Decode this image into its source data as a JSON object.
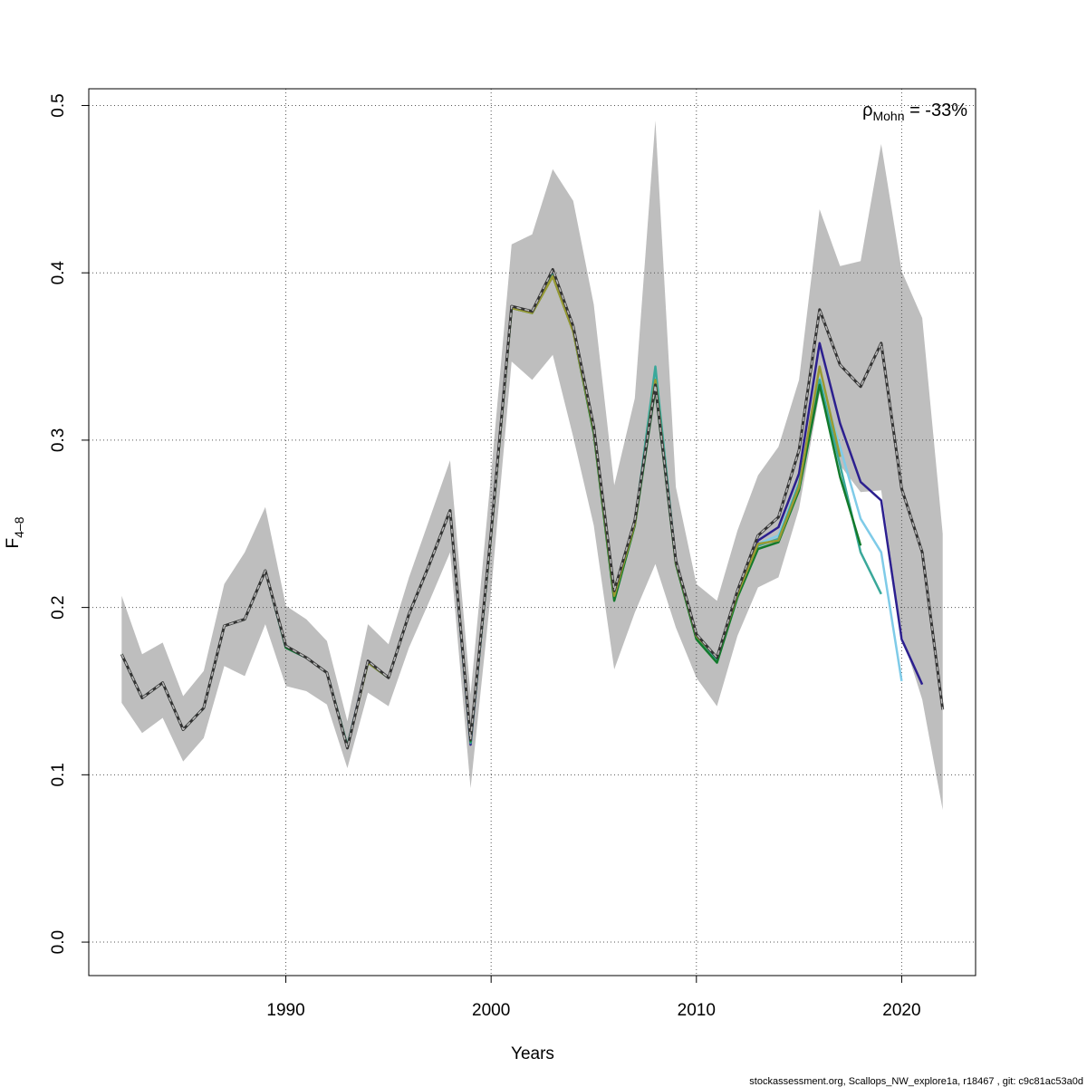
{
  "chart_data": {
    "type": "line",
    "xlabel": "Years",
    "ylabel": "F",
    "ylabel_subscript": "4–8",
    "xlim": [
      1980.4,
      2023.6
    ],
    "ylim": [
      -0.02,
      0.51
    ],
    "x_ticks": [
      1990,
      2000,
      2010,
      2020
    ],
    "x_tick_labels": [
      "1990",
      "2000",
      "2010",
      "2020"
    ],
    "y_ticks": [
      0.0,
      0.1,
      0.2,
      0.3,
      0.4,
      0.5
    ],
    "y_tick_labels": [
      "0.0",
      "0.1",
      "0.2",
      "0.3",
      "0.4",
      "0.5"
    ],
    "grid": true,
    "mohn_symbol": "ρ",
    "mohn_subscript": "Mohn",
    "mohn_value": " = -33%",
    "footer": "stockassessment.org, Scallops_NW_explore1a, r18467 , git: c9c81ac53a0d",
    "band": {
      "color": "#bebebe",
      "x": [
        1982,
        1983,
        1984,
        1985,
        1986,
        1987,
        1988,
        1989,
        1990,
        1991,
        1992,
        1993,
        1994,
        1995,
        1996,
        1997,
        1998,
        1999,
        2000,
        2001,
        2002,
        2003,
        2004,
        2005,
        2006,
        2007,
        2008,
        2009,
        2010,
        2011,
        2012,
        2013,
        2014,
        2015,
        2016,
        2017,
        2018,
        2019,
        2020,
        2021,
        2022
      ],
      "upper": [
        0.207,
        0.172,
        0.179,
        0.147,
        0.162,
        0.214,
        0.233,
        0.26,
        0.201,
        0.193,
        0.18,
        0.132,
        0.19,
        0.178,
        0.218,
        0.253,
        0.288,
        0.148,
        0.28,
        0.417,
        0.423,
        0.462,
        0.443,
        0.381,
        0.273,
        0.325,
        0.491,
        0.272,
        0.214,
        0.204,
        0.246,
        0.279,
        0.296,
        0.336,
        0.438,
        0.404,
        0.407,
        0.477,
        0.401,
        0.373,
        0.244
      ],
      "lower": [
        0.143,
        0.125,
        0.134,
        0.108,
        0.122,
        0.165,
        0.159,
        0.19,
        0.153,
        0.15,
        0.142,
        0.104,
        0.149,
        0.141,
        0.176,
        0.204,
        0.233,
        0.092,
        0.21,
        0.347,
        0.336,
        0.351,
        0.302,
        0.249,
        0.163,
        0.197,
        0.226,
        0.188,
        0.158,
        0.141,
        0.183,
        0.212,
        0.218,
        0.259,
        0.328,
        0.285,
        0.269,
        0.27,
        0.184,
        0.145,
        0.079
      ]
    },
    "series": [
      {
        "color": "#7fcbe8",
        "dashed": false,
        "width": 2.5,
        "x": [
          1982,
          1983,
          1984,
          1985,
          1986,
          1987,
          1988,
          1989,
          1990,
          1991,
          1992,
          1993,
          1994,
          1995,
          1996,
          1997,
          1998,
          1999,
          2000,
          2001,
          2002,
          2003,
          2004,
          2005,
          2006,
          2007,
          2008,
          2009,
          2010,
          2011,
          2012,
          2013,
          2014,
          2015,
          2016,
          2017,
          2018,
          2019,
          2020
        ],
        "y": [
          0.172,
          0.146,
          0.155,
          0.127,
          0.14,
          0.189,
          0.193,
          0.222,
          0.176,
          0.17,
          0.161,
          0.117,
          0.168,
          0.158,
          0.196,
          0.226,
          0.258,
          0.12,
          0.244,
          0.379,
          0.377,
          0.4,
          0.366,
          0.306,
          0.206,
          0.25,
          0.34,
          0.227,
          0.183,
          0.169,
          0.208,
          0.238,
          0.243,
          0.274,
          0.337,
          0.296,
          0.253,
          0.233,
          0.156
        ]
      },
      {
        "color": "#2c1f8f",
        "dashed": false,
        "width": 2.5,
        "x": [
          1982,
          1983,
          1984,
          1985,
          1986,
          1987,
          1988,
          1989,
          1990,
          1991,
          1992,
          1993,
          1994,
          1995,
          1996,
          1997,
          1998,
          1999,
          2000,
          2001,
          2002,
          2003,
          2004,
          2005,
          2006,
          2007,
          2008,
          2009,
          2010,
          2011,
          2012,
          2013,
          2014,
          2015,
          2016,
          2017,
          2018,
          2019,
          2020,
          2021
        ],
        "y": [
          0.172,
          0.146,
          0.155,
          0.127,
          0.14,
          0.189,
          0.193,
          0.222,
          0.176,
          0.17,
          0.161,
          0.117,
          0.168,
          0.158,
          0.196,
          0.226,
          0.258,
          0.118,
          0.245,
          0.38,
          0.376,
          0.401,
          0.367,
          0.307,
          0.208,
          0.251,
          0.336,
          0.228,
          0.183,
          0.169,
          0.209,
          0.24,
          0.248,
          0.28,
          0.358,
          0.31,
          0.275,
          0.264,
          0.181,
          0.154
        ]
      },
      {
        "color": "#3aa89a",
        "dashed": false,
        "width": 2.5,
        "x": [
          1982,
          1983,
          1984,
          1985,
          1986,
          1987,
          1988,
          1989,
          1990,
          1991,
          1992,
          1993,
          1994,
          1995,
          1996,
          1997,
          1998,
          1999,
          2000,
          2001,
          2002,
          2003,
          2004,
          2005,
          2006,
          2007,
          2008,
          2009,
          2010,
          2011,
          2012,
          2013,
          2014,
          2015,
          2016,
          2017,
          2018,
          2019
        ],
        "y": [
          0.172,
          0.146,
          0.155,
          0.127,
          0.14,
          0.189,
          0.193,
          0.222,
          0.176,
          0.17,
          0.161,
          0.117,
          0.167,
          0.158,
          0.196,
          0.226,
          0.258,
          0.119,
          0.244,
          0.379,
          0.376,
          0.399,
          0.366,
          0.305,
          0.205,
          0.25,
          0.344,
          0.227,
          0.182,
          0.168,
          0.207,
          0.237,
          0.241,
          0.274,
          0.336,
          0.285,
          0.233,
          0.208
        ]
      },
      {
        "color": "#137a2c",
        "dashed": false,
        "width": 2.5,
        "x": [
          1982,
          1983,
          1984,
          1985,
          1986,
          1987,
          1988,
          1989,
          1990,
          1991,
          1992,
          1993,
          1994,
          1995,
          1996,
          1997,
          1998,
          1999,
          2000,
          2001,
          2002,
          2003,
          2004,
          2005,
          2006,
          2007,
          2008,
          2009,
          2010,
          2011,
          2012,
          2013,
          2014,
          2015,
          2016,
          2017,
          2018
        ],
        "y": [
          0.172,
          0.146,
          0.155,
          0.127,
          0.14,
          0.189,
          0.193,
          0.222,
          0.176,
          0.17,
          0.161,
          0.117,
          0.167,
          0.158,
          0.196,
          0.226,
          0.258,
          0.12,
          0.244,
          0.379,
          0.376,
          0.398,
          0.365,
          0.304,
          0.204,
          0.249,
          0.331,
          0.226,
          0.181,
          0.167,
          0.206,
          0.235,
          0.239,
          0.27,
          0.333,
          0.278,
          0.237
        ]
      },
      {
        "color": "#9a9a32",
        "dashed": false,
        "width": 2.5,
        "x": [
          1982,
          1983,
          1984,
          1985,
          1986,
          1987,
          1988,
          1989,
          1990,
          1991,
          1992,
          1993,
          1994,
          1995,
          1996,
          1997,
          1998,
          1999,
          2000,
          2001,
          2002,
          2003,
          2004,
          2005,
          2006,
          2007,
          2008,
          2009,
          2010,
          2011,
          2012,
          2013,
          2014,
          2015,
          2016,
          2017
        ],
        "y": [
          0.172,
          0.146,
          0.155,
          0.127,
          0.14,
          0.189,
          0.193,
          0.222,
          0.177,
          0.17,
          0.161,
          0.116,
          0.167,
          0.158,
          0.196,
          0.226,
          0.258,
          0.121,
          0.244,
          0.379,
          0.376,
          0.398,
          0.365,
          0.306,
          0.207,
          0.25,
          0.336,
          0.227,
          0.183,
          0.17,
          0.208,
          0.238,
          0.24,
          0.272,
          0.344,
          0.29
        ]
      },
      {
        "color": "#333333",
        "dashed": false,
        "width": 3,
        "x": [
          1982,
          1983,
          1984,
          1985,
          1986,
          1987,
          1988,
          1989,
          1990,
          1991,
          1992,
          1993,
          1994,
          1995,
          1996,
          1997,
          1998,
          1999,
          2000,
          2001,
          2002,
          2003,
          2004,
          2005,
          2006,
          2007,
          2008,
          2009,
          2010,
          2011,
          2012,
          2013,
          2014,
          2015,
          2016,
          2017,
          2018,
          2019,
          2020,
          2021,
          2022
        ],
        "y": [
          0.172,
          0.146,
          0.155,
          0.127,
          0.14,
          0.189,
          0.193,
          0.222,
          0.177,
          0.17,
          0.161,
          0.116,
          0.168,
          0.158,
          0.196,
          0.226,
          0.258,
          0.121,
          0.245,
          0.38,
          0.377,
          0.402,
          0.368,
          0.308,
          0.21,
          0.252,
          0.333,
          0.228,
          0.184,
          0.17,
          0.21,
          0.243,
          0.254,
          0.294,
          0.378,
          0.345,
          0.332,
          0.358,
          0.271,
          0.233,
          0.139
        ]
      },
      {
        "color": "#bbbbbb",
        "dashed": true,
        "width": 1.5,
        "x": [
          1982,
          1983,
          1984,
          1985,
          1986,
          1987,
          1988,
          1989,
          1990,
          1991,
          1992,
          1993,
          1994,
          1995,
          1996,
          1997,
          1998,
          1999,
          2000,
          2001,
          2002,
          2003,
          2004,
          2005,
          2006,
          2007,
          2008,
          2009,
          2010,
          2011,
          2012,
          2013,
          2014,
          2015,
          2016,
          2017,
          2018,
          2019,
          2020,
          2021,
          2022
        ],
        "y": [
          0.172,
          0.146,
          0.155,
          0.127,
          0.14,
          0.189,
          0.193,
          0.222,
          0.177,
          0.17,
          0.161,
          0.116,
          0.168,
          0.158,
          0.196,
          0.226,
          0.258,
          0.121,
          0.245,
          0.38,
          0.377,
          0.402,
          0.368,
          0.308,
          0.21,
          0.252,
          0.333,
          0.228,
          0.184,
          0.17,
          0.21,
          0.243,
          0.254,
          0.294,
          0.378,
          0.345,
          0.332,
          0.358,
          0.271,
          0.233,
          0.139
        ]
      }
    ]
  }
}
